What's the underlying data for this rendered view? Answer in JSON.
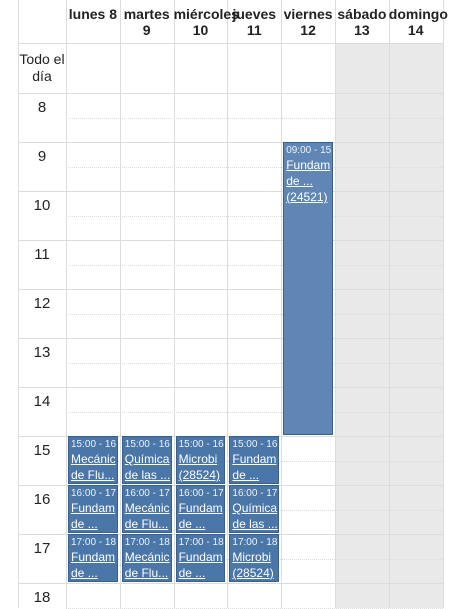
{
  "days": [
    {
      "name": "lunes 8",
      "num": ""
    },
    {
      "name": "martes",
      "num": "9"
    },
    {
      "name": "miércoles",
      "num": "10"
    },
    {
      "name": "jueves",
      "num": "11"
    },
    {
      "name": "viernes",
      "num": "12"
    },
    {
      "name": "sábado",
      "num": "13"
    },
    {
      "name": "domingo",
      "num": "14"
    }
  ],
  "allday_label": "Todo el día",
  "hours": [
    "8",
    "9",
    "10",
    "11",
    "12",
    "13",
    "14",
    "15",
    "16",
    "17",
    "18"
  ],
  "events": [
    {
      "day": 4,
      "start": 9,
      "end": 15,
      "time": "09:00 - 15",
      "lines": [
        "Fundam",
        "de ...",
        "(24521)"
      ]
    },
    {
      "day": 0,
      "start": 15,
      "end": 16,
      "time": "15:00 - 16",
      "lines": [
        "Mecánic",
        "de Flu..."
      ]
    },
    {
      "day": 1,
      "start": 15,
      "end": 16,
      "time": "15:00 - 16",
      "lines": [
        "Química",
        "de las ..."
      ]
    },
    {
      "day": 2,
      "start": 15,
      "end": 16,
      "time": "15:00 - 16",
      "lines": [
        "Microbi",
        "(28524)"
      ]
    },
    {
      "day": 3,
      "start": 15,
      "end": 16,
      "time": "15:00 - 16",
      "lines": [
        "Fundam",
        "de ..."
      ]
    },
    {
      "day": 0,
      "start": 16,
      "end": 17,
      "time": "16:00 - 17",
      "lines": [
        "Fundam",
        "de ..."
      ]
    },
    {
      "day": 1,
      "start": 16,
      "end": 17,
      "time": "16:00 - 17",
      "lines": [
        "Mecánic",
        "de Flu..."
      ]
    },
    {
      "day": 2,
      "start": 16,
      "end": 17,
      "time": "16:00 - 17",
      "lines": [
        "Fundam",
        "de ..."
      ]
    },
    {
      "day": 3,
      "start": 16,
      "end": 17,
      "time": "16:00 - 17",
      "lines": [
        "Química",
        "de las ..."
      ]
    },
    {
      "day": 0,
      "start": 17,
      "end": 18,
      "time": "17:00 - 18",
      "lines": [
        "Fundam",
        "de ..."
      ]
    },
    {
      "day": 1,
      "start": 17,
      "end": 18,
      "time": "17:00 - 18",
      "lines": [
        "Mecánic",
        "de Flu..."
      ]
    },
    {
      "day": 2,
      "start": 17,
      "end": 18,
      "time": "17:00 - 18",
      "lines": [
        "Fundam",
        "de ..."
      ]
    },
    {
      "day": 3,
      "start": 17,
      "end": 18,
      "time": "17:00 - 18",
      "lines": [
        "Microbi",
        "(28524)"
      ]
    }
  ],
  "colors": {
    "event_long": "#5f86b4",
    "event_short": "#4a76a8",
    "event_border": "#3a5f8c",
    "weekend_bg": "#e9e9e9",
    "grid": "#dcdcdc"
  }
}
